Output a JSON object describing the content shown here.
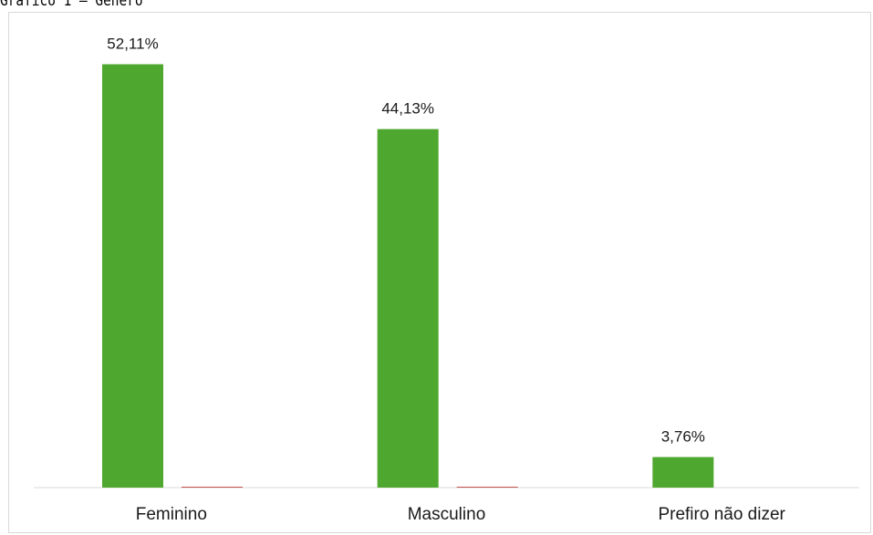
{
  "caption": "Gráfico 1 – Gênero",
  "chart_data": {
    "type": "bar",
    "title": "",
    "xlabel": "",
    "ylabel": "",
    "categories": [
      "Feminino",
      "Masculino",
      "Prefiro não dizer"
    ],
    "series": [
      {
        "values": [
          52.11,
          44.13,
          3.76
        ],
        "color": "#4ea72e"
      },
      {
        "values": [
          0.05,
          0.05,
          0
        ],
        "color": "#c0504d"
      }
    ],
    "data_labels": [
      "52,11%",
      "44,13%",
      "3,76%"
    ],
    "ylim": [
      0,
      58
    ],
    "grid": false,
    "legend": "none"
  }
}
